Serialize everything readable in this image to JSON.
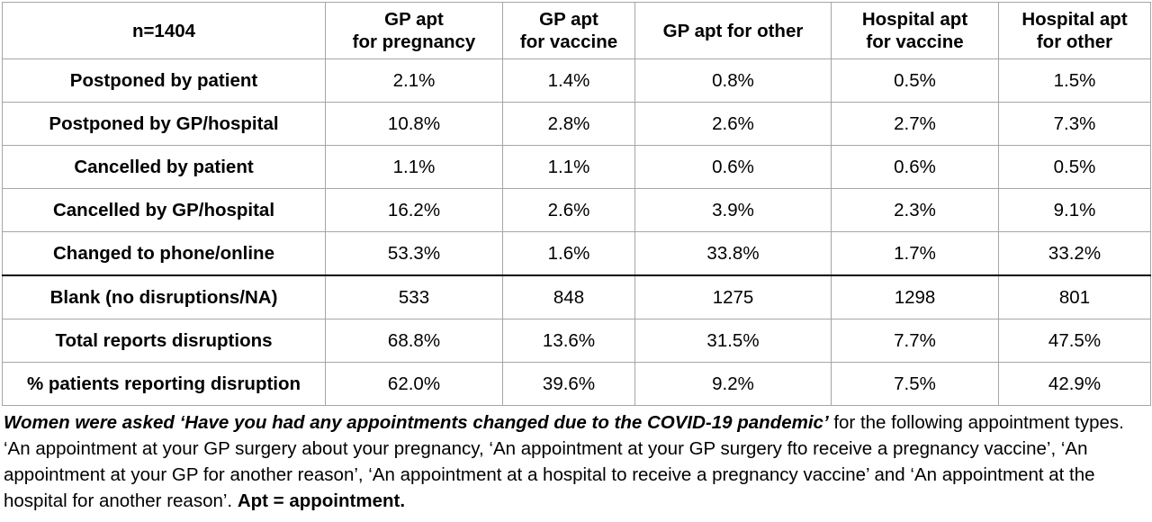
{
  "table": {
    "corner": "n=1404",
    "headers": [
      {
        "line1": "GP apt",
        "line2": "for pregnancy"
      },
      {
        "line1": "GP apt",
        "line2": "for vaccine"
      },
      {
        "line1": "GP apt for other",
        "line2": ""
      },
      {
        "line1": "Hospital apt",
        "line2": "for vaccine"
      },
      {
        "line1": "Hospital apt",
        "line2": "for other"
      }
    ],
    "rows": [
      {
        "label": "Postponed by patient",
        "values": [
          "2.1%",
          "1.4%",
          "0.8%",
          "0.5%",
          "1.5%"
        ]
      },
      {
        "label": "Postponed by GP/hospital",
        "values": [
          "10.8%",
          "2.8%",
          "2.6%",
          "2.7%",
          "7.3%"
        ]
      },
      {
        "label": "Cancelled by patient",
        "values": [
          "1.1%",
          "1.1%",
          "0.6%",
          "0.6%",
          "0.5%"
        ]
      },
      {
        "label": "Cancelled by GP/hospital",
        "values": [
          "16.2%",
          "2.6%",
          "3.9%",
          "2.3%",
          "9.1%"
        ]
      },
      {
        "label": "Changed to phone/online",
        "values": [
          "53.3%",
          "1.6%",
          "33.8%",
          "1.7%",
          "33.2%"
        ]
      },
      {
        "label": "Blank (no disruptions/NA)",
        "values": [
          "533",
          "848",
          "1275",
          "1298",
          "801"
        ]
      },
      {
        "label": "Total reports disruptions",
        "values": [
          "68.8%",
          "13.6%",
          "31.5%",
          "7.7%",
          "47.5%"
        ]
      },
      {
        "label": "% patients reporting disruption",
        "values": [
          "62.0%",
          "39.6%",
          "9.2%",
          "7.5%",
          "42.9%"
        ]
      }
    ]
  },
  "caption": {
    "question": "Women were asked ‘Have you had any appointments changed due to the COVID-19 pandemic’",
    "body": " for the following appointment types. ‘An appointment at your GP surgery about your pregnancy, ‘An appointment at your GP surgery fto receive a pregnancy vaccine’, ‘An appointment at your GP for another reason’, ‘An appointment at a hospital to receive a pregnancy vaccine’ and ‘An appointment at the hospital for another reason’. ",
    "note": "Apt = appointment."
  }
}
